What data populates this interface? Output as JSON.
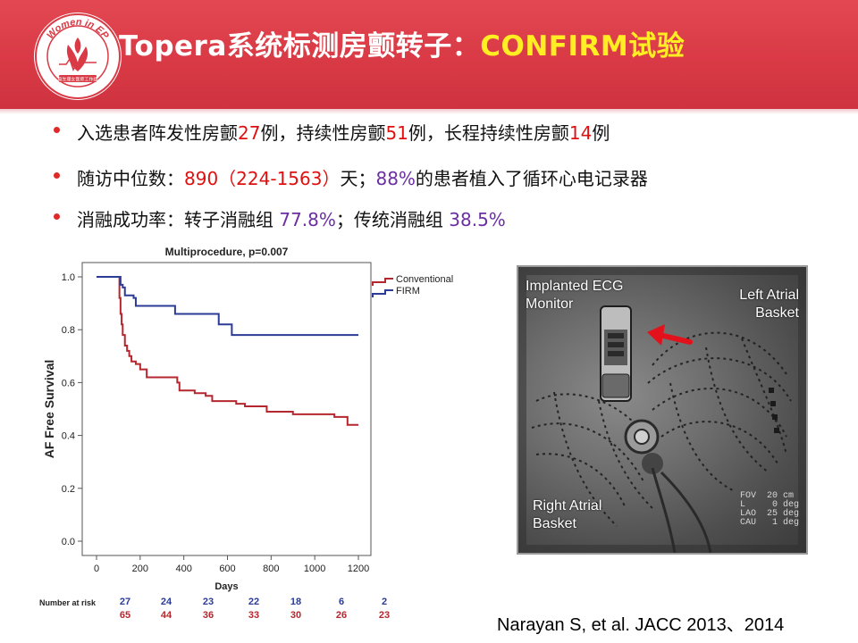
{
  "logo": {
    "ring_text": "Women in EP",
    "bottom_text": "电生理女医师工作组"
  },
  "title": {
    "part1": "Topera系统标测房颤转子：",
    "part2": "CONFIRM试验"
  },
  "bullets": [
    {
      "segments": [
        {
          "text": "入选患者阵发性房颤",
          "style": "normal"
        },
        {
          "text": "27",
          "style": "red"
        },
        {
          "text": "例，持续性房颤",
          "style": "normal"
        },
        {
          "text": "51",
          "style": "red"
        },
        {
          "text": "例，长程持续性房颤",
          "style": "normal"
        },
        {
          "text": "14",
          "style": "red"
        },
        {
          "text": "例",
          "style": "normal"
        }
      ]
    },
    {
      "segments": [
        {
          "text": "随访中位数：",
          "style": "normal"
        },
        {
          "text": "890（224-1563）",
          "style": "red"
        },
        {
          "text": "天；",
          "style": "normal"
        },
        {
          "text": "88%",
          "style": "purple"
        },
        {
          "text": "的患者植入了循环心电记录器",
          "style": "normal"
        }
      ]
    },
    {
      "segments": [
        {
          "text": "消融成功率：转子消融组 ",
          "style": "normal"
        },
        {
          "text": "77.8%",
          "style": "purple"
        },
        {
          "text": "；传统消融组 ",
          "style": "normal"
        },
        {
          "text": "38.5%",
          "style": "purple"
        }
      ]
    }
  ],
  "colors": {
    "header_red": "#d93a45",
    "title_yellow": "#ffee22",
    "conventional": "#b5272e",
    "firm": "#2b3b96",
    "highlight_red": "#e01010",
    "highlight_purple": "#6b2fa3"
  },
  "chart_data": {
    "type": "line",
    "title": "Multiprocedure, p=0.007",
    "xlabel": "Days",
    "ylabel": "AF Free Survival",
    "xlim": [
      0,
      1200
    ],
    "ylim": [
      0,
      1.0
    ],
    "x_ticks": [
      "0",
      "200",
      "400",
      "600",
      "800",
      "1000",
      "1200"
    ],
    "y_ticks": [
      "0.0",
      "0.2",
      "0.4",
      "0.6",
      "0.8",
      "1.0"
    ],
    "legend_position": "top-right",
    "grid": false,
    "step": true,
    "series": [
      {
        "name": "Conventional",
        "color": "#b5272e",
        "points": [
          [
            0,
            1.0
          ],
          [
            100,
            1.0
          ],
          [
            105,
            0.92
          ],
          [
            110,
            0.86
          ],
          [
            115,
            0.82
          ],
          [
            120,
            0.78
          ],
          [
            130,
            0.74
          ],
          [
            140,
            0.72
          ],
          [
            150,
            0.7
          ],
          [
            160,
            0.68
          ],
          [
            180,
            0.67
          ],
          [
            200,
            0.65
          ],
          [
            230,
            0.62
          ],
          [
            350,
            0.62
          ],
          [
            370,
            0.6
          ],
          [
            380,
            0.57
          ],
          [
            450,
            0.56
          ],
          [
            500,
            0.55
          ],
          [
            530,
            0.53
          ],
          [
            600,
            0.53
          ],
          [
            640,
            0.52
          ],
          [
            680,
            0.51
          ],
          [
            780,
            0.49
          ],
          [
            900,
            0.48
          ],
          [
            1050,
            0.48
          ],
          [
            1090,
            0.47
          ],
          [
            1150,
            0.44
          ],
          [
            1200,
            0.44
          ]
        ]
      },
      {
        "name": "FIRM",
        "color": "#2b3b96",
        "points": [
          [
            0,
            1.0
          ],
          [
            100,
            1.0
          ],
          [
            110,
            0.97
          ],
          [
            120,
            0.96
          ],
          [
            130,
            0.93
          ],
          [
            170,
            0.92
          ],
          [
            180,
            0.89
          ],
          [
            350,
            0.89
          ],
          [
            360,
            0.86
          ],
          [
            540,
            0.86
          ],
          [
            560,
            0.82
          ],
          [
            610,
            0.82
          ],
          [
            620,
            0.78
          ],
          [
            1200,
            0.78
          ]
        ]
      }
    ],
    "number_at_risk": {
      "label": "Number at risk",
      "firm": [
        "27",
        "24",
        "23",
        "22",
        "18",
        "6",
        "2"
      ],
      "conventional": [
        "65",
        "44",
        "36",
        "33",
        "30",
        "26",
        "23"
      ]
    }
  },
  "xray": {
    "label_ecg": [
      "Implanted ECG",
      "Monitor"
    ],
    "label_left": [
      "Left Atrial",
      "Basket"
    ],
    "label_right": [
      "Right Atrial",
      "Basket"
    ],
    "meta": "FOV  20 cm\nL     0 deg\nLAO  25 deg\nCAU   1 deg"
  },
  "citation": "Narayan S, et al. JACC 2013、2014"
}
